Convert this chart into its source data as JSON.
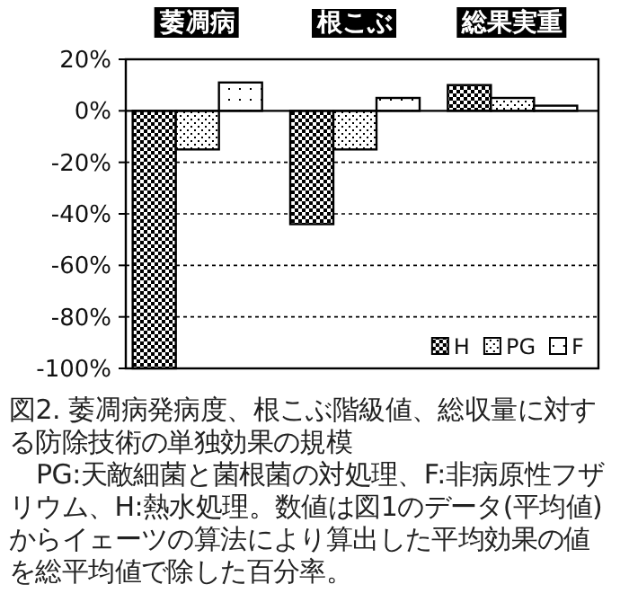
{
  "chart_data": {
    "type": "bar",
    "title": "図2. 萎凋病発病度、根こぶ階級値、総収量に対する防除技術の単独効果の規模",
    "annotations": [
      "PG:天敵細菌と菌根菌の対処理、F:非病原性フザリウム、H:熱水処理。数値は図1のデータ(平均値)からイェーツの算法により算出した平均効果の値を総平均値で除した百分率。"
    ],
    "categories": [
      "萎凋病",
      "根こぶ",
      "総果実重"
    ],
    "series": [
      {
        "name": "H",
        "color": "#000000",
        "values": [
          -100,
          -44,
          10
        ]
      },
      {
        "name": "PG",
        "color": "#000000",
        "values": [
          -15,
          -15,
          5
        ]
      },
      {
        "name": "F",
        "color": "#000000",
        "values": [
          11,
          5,
          2
        ]
      }
    ],
    "ylim": [
      -100,
      20
    ],
    "yticks": [
      {
        "value": -100,
        "label": "-100%"
      },
      {
        "value": -80,
        "label": "-80%"
      },
      {
        "value": -60,
        "label": "-60%"
      },
      {
        "value": -40,
        "label": "-40%"
      },
      {
        "value": -20,
        "label": "-20%"
      },
      {
        "value": 0,
        "label": "0%"
      },
      {
        "value": 20,
        "label": "20%"
      }
    ],
    "grid": "y",
    "legend": "bottom right"
  }
}
